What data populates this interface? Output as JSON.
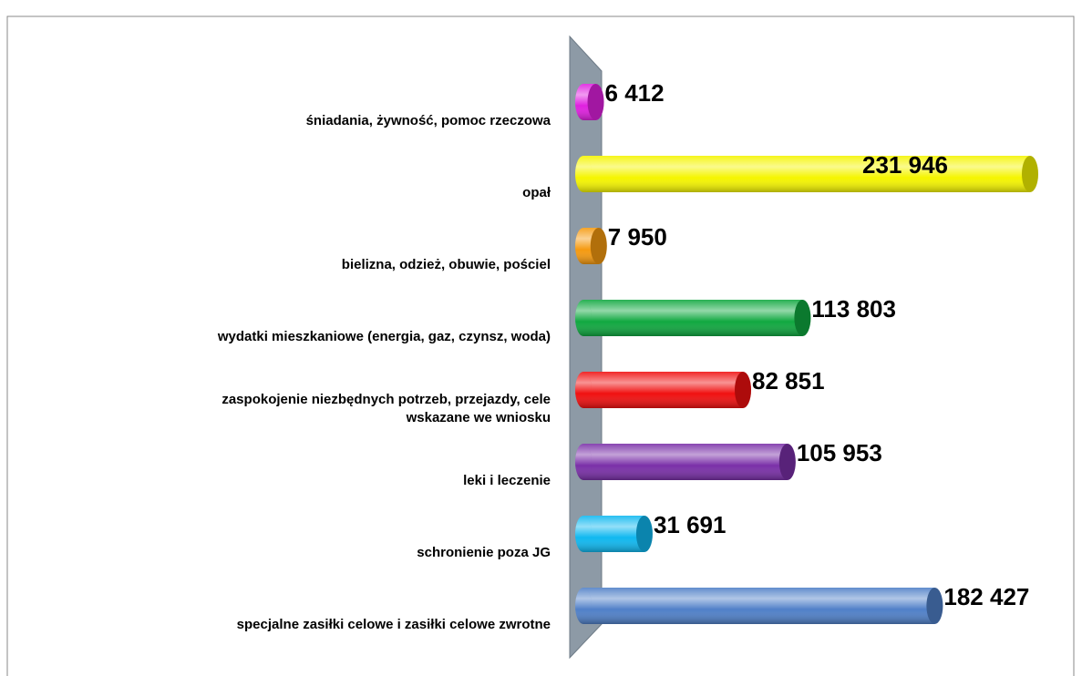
{
  "chart_data": {
    "type": "bar3d",
    "categories": [
      "śniadania, żywność, pomoc rzeczowa",
      "opał",
      "bielizna, odzież, obuwie, pościel",
      "wydatki mieszkaniowe (energia, gaz, czynsz, woda)",
      "zaspokojenie niezbędnych potrzeb, przejazdy, cele\nwskazane we wniosku",
      "leki i leczenie",
      "schronienie poza JG",
      "specjalne zasiłki celowe i zasiłki celowe zwrotne"
    ],
    "values": [
      6412,
      231946,
      7950,
      113803,
      82851,
      105953,
      31691,
      182427
    ],
    "value_labels": [
      "6 412",
      "231 946",
      "7 950",
      "113 803",
      "82 851",
      "105 953",
      "31 691",
      "182 427"
    ],
    "colors": [
      "#e020e0",
      "#f5f500",
      "#f59a10",
      "#10a840",
      "#f01010",
      "#7a30a8",
      "#10b8f0",
      "#5080c8"
    ]
  }
}
